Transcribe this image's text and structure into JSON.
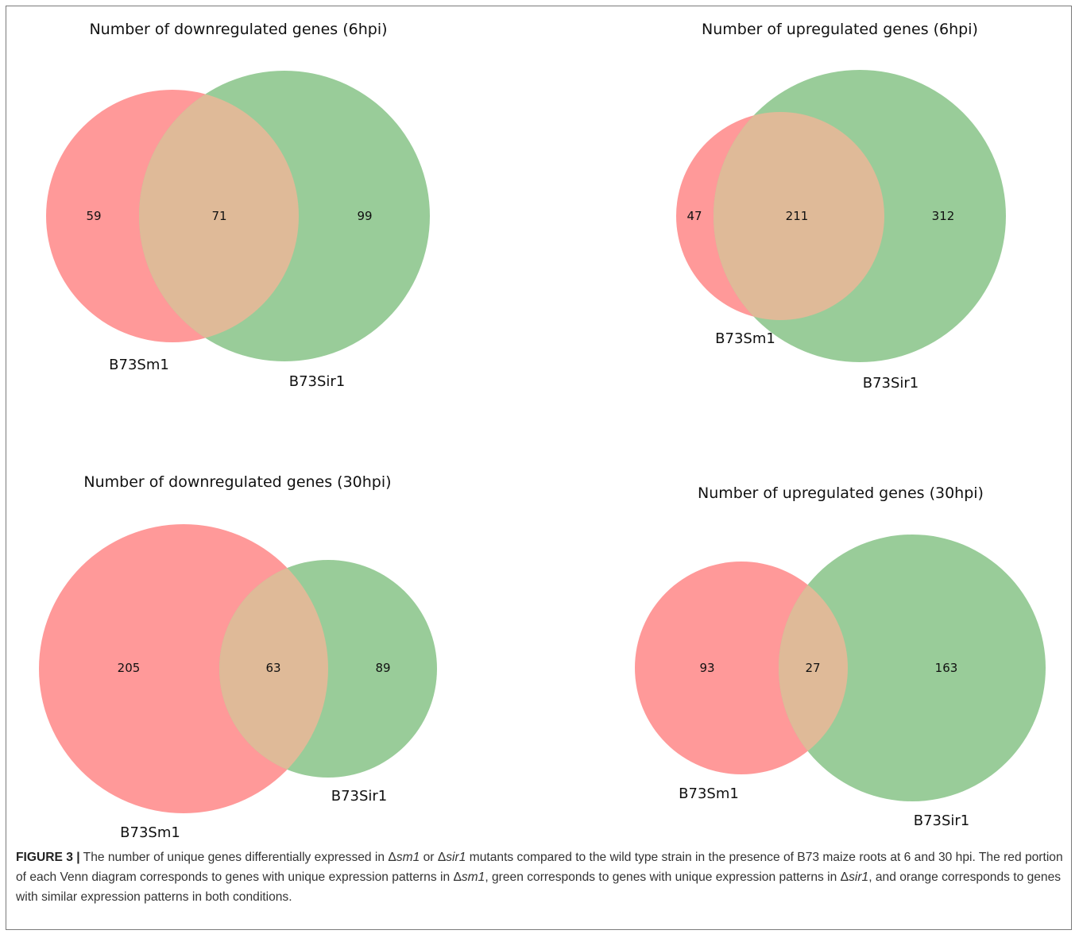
{
  "colors": {
    "set_a": "#ff9999",
    "set_b": "#99cc99",
    "overlap": "#dfba98",
    "border": "#7a7a7a"
  },
  "chart_data": [
    {
      "type": "venn",
      "title": "Number of downregulated genes (6hpi)",
      "sets": [
        "B73Sm1",
        "B73Sir1"
      ],
      "values": {
        "only_a": 59,
        "both": 71,
        "only_b": 99
      }
    },
    {
      "type": "venn",
      "title": "Number of upregulated genes (6hpi)",
      "sets": [
        "B73Sm1",
        "B73Sir1"
      ],
      "values": {
        "only_a": 47,
        "both": 211,
        "only_b": 312
      }
    },
    {
      "type": "venn",
      "title": "Number of downregulated genes (30hpi)",
      "sets": [
        "B73Sm1",
        "B73Sir1"
      ],
      "values": {
        "only_a": 205,
        "both": 63,
        "only_b": 89
      }
    },
    {
      "type": "venn",
      "title": "Number of upregulated genes (30hpi)",
      "sets": [
        "B73Sm1",
        "B73Sir1"
      ],
      "values": {
        "only_a": 93,
        "both": 27,
        "only_b": 163
      }
    }
  ],
  "caption": {
    "lead": "FIGURE 3 |",
    "p1": " The number of unique genes differentially expressed in Δ",
    "i1": "sm1",
    "p2": " or Δ",
    "i2": "sir1",
    "p3": " mutants compared to the wild type strain in the presence of B73 maize roots at 6 and 30 hpi. The red portion of each Venn diagram corresponds to genes with unique expression patterns in Δ",
    "i3": "sm1",
    "p4": ", green corresponds to genes with unique expression patterns in Δ",
    "i4": "sir1",
    "p5": ", and orange corresponds to genes with similar expression patterns in both conditions."
  }
}
